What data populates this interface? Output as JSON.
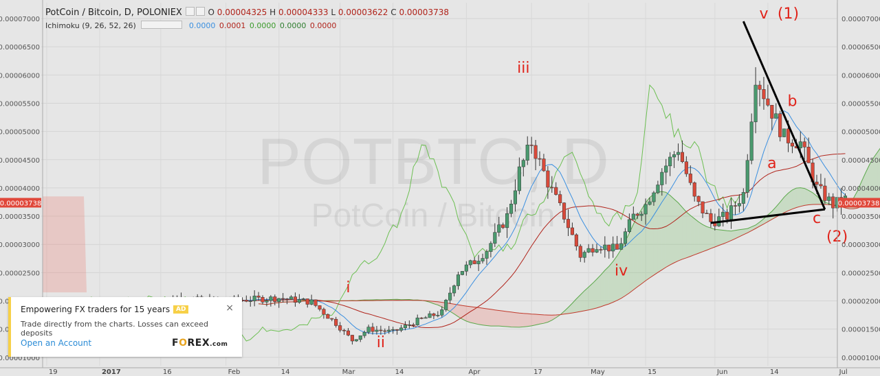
{
  "header": {
    "title": "PotCoin / Bitcoin, D, POLONIEX",
    "o_label": "O",
    "o_value": "0.00004325",
    "h_label": "H",
    "h_value": "0.00004333",
    "l_label": "L",
    "l_value": "0.00003622",
    "c_label": "C",
    "c_value": "0.00003738"
  },
  "indicator": {
    "name": "Ichimoku (9, 26, 52, 26)",
    "values": [
      "0.0000",
      "0.0001",
      "0.0000",
      "0.0000",
      "0.0000"
    ],
    "colors": [
      "#3a8fe0",
      "#b0231a",
      "#3a9a2a",
      "#2e7d2e",
      "#b0231a"
    ]
  },
  "watermark": {
    "symbol": "POTBTC, D",
    "name": "PotCoin / Bitcoin"
  },
  "ad": {
    "title": "Empowering FX traders for 15 years",
    "badge": "AD",
    "close": "×",
    "description": "Trade directly from the charts. Losses can exceed deposits",
    "link": "Open an Account",
    "logo_prefix": "F",
    "logo_o": "O",
    "logo_suffix": "REX",
    "logo_tld": ".com"
  },
  "chart_data": {
    "type": "candlestick",
    "symbol": "PotCoin / Bitcoin",
    "interval": "D",
    "exchange": "POLONIEX",
    "ylim": [
      9.5e-06,
      7.3e-06
    ],
    "price_axis_ticks": [
      "0.00007000",
      "0.00006500",
      "0.00006000",
      "0.00005500",
      "0.00005000",
      "0.00004500",
      "0.00004000",
      "0.00003500",
      "0.00003000",
      "0.00002500",
      "0.00002000",
      "0.00001500",
      "0.00001000"
    ],
    "price_axis_values": [
      7e-05,
      6.5e-05,
      6e-05,
      5.5e-05,
      5e-05,
      4.5e-05,
      4e-05,
      3.5e-05,
      3e-05,
      2.5e-05,
      2e-05,
      1.5e-05,
      1e-05
    ],
    "last_price": "0.00003738",
    "last_price_value": 3.738e-05,
    "time_ticks": [
      "19",
      "2017",
      "16",
      "Feb",
      "14",
      "Mar",
      "14",
      "Apr",
      "17",
      "May",
      "15",
      "Jun",
      "14",
      "Jul"
    ],
    "time_tick_day": [
      -13,
      0,
      15,
      31,
      44,
      59,
      72,
      90,
      106,
      120,
      134,
      151,
      164,
      181
    ],
    "wave_labels": [
      {
        "text": "i",
        "day": 61,
        "price": 2.15e-05
      },
      {
        "text": "ii",
        "day": 69,
        "price": 1.18e-05
      },
      {
        "text": "iii",
        "day": 104,
        "price": 6.04e-05
      },
      {
        "text": "iv",
        "day": 128,
        "price": 2.45e-05
      },
      {
        "text": "v",
        "day": 163,
        "price": 7e-05
      },
      {
        "text": "(1)",
        "day": 169,
        "price": 7e-05
      },
      {
        "text": "a",
        "day": 165,
        "price": 4.35e-05
      },
      {
        "text": "b",
        "day": 170,
        "price": 5.45e-05
      },
      {
        "text": "c",
        "day": 176,
        "price": 3.38e-05
      },
      {
        "text": "(2)",
        "day": 181,
        "price": 3.05e-05
      }
    ],
    "wave_lines": [
      {
        "from": {
          "day": 158,
          "price": 6.95e-05
        },
        "to": {
          "day": 178,
          "price": 3.62e-05
        }
      },
      {
        "from": {
          "day": 150,
          "price": 3.38e-05
        },
        "to": {
          "day": 178,
          "price": 3.62e-05
        }
      }
    ],
    "price_path": [
      {
        "day": 13,
        "price": 1.95e-05
      },
      {
        "day": 20,
        "price": 2.05e-05
      },
      {
        "day": 27,
        "price": 1.98e-05
      },
      {
        "day": 35,
        "price": 2.02e-05
      },
      {
        "day": 44,
        "price": 2.05e-05
      },
      {
        "day": 52,
        "price": 1.98e-05
      },
      {
        "day": 58,
        "price": 1.6e-05
      },
      {
        "day": 62,
        "price": 1.3e-05
      },
      {
        "day": 66,
        "price": 1.5e-05
      },
      {
        "day": 72,
        "price": 1.45e-05
      },
      {
        "day": 78,
        "price": 1.65e-05
      },
      {
        "day": 84,
        "price": 1.8e-05
      },
      {
        "day": 88,
        "price": 2.5e-05
      },
      {
        "day": 92,
        "price": 2.7e-05
      },
      {
        "day": 95,
        "price": 2.9e-05
      },
      {
        "day": 100,
        "price": 3.5e-05
      },
      {
        "day": 103,
        "price": 4.3e-05
      },
      {
        "day": 106,
        "price": 4.8e-05
      },
      {
        "day": 110,
        "price": 4.1e-05
      },
      {
        "day": 114,
        "price": 3.5e-05
      },
      {
        "day": 118,
        "price": 2.8e-05
      },
      {
        "day": 122,
        "price": 3e-05
      },
      {
        "day": 127,
        "price": 2.9e-05
      },
      {
        "day": 131,
        "price": 3.5e-05
      },
      {
        "day": 134,
        "price": 3.7e-05
      },
      {
        "day": 138,
        "price": 4.3e-05
      },
      {
        "day": 142,
        "price": 4.7e-05
      },
      {
        "day": 146,
        "price": 3.8e-05
      },
      {
        "day": 150,
        "price": 3.4e-05
      },
      {
        "day": 154,
        "price": 3.5e-05
      },
      {
        "day": 158,
        "price": 3.9e-05
      },
      {
        "day": 161,
        "price": 6e-05
      },
      {
        "day": 164,
        "price": 5.5e-05
      },
      {
        "day": 168,
        "price": 4.9e-05
      },
      {
        "day": 172,
        "price": 4.8e-05
      },
      {
        "day": 176,
        "price": 4e-05
      },
      {
        "day": 180,
        "price": 3.7e-05
      },
      {
        "day": 183,
        "price": 3.8e-05
      }
    ]
  }
}
